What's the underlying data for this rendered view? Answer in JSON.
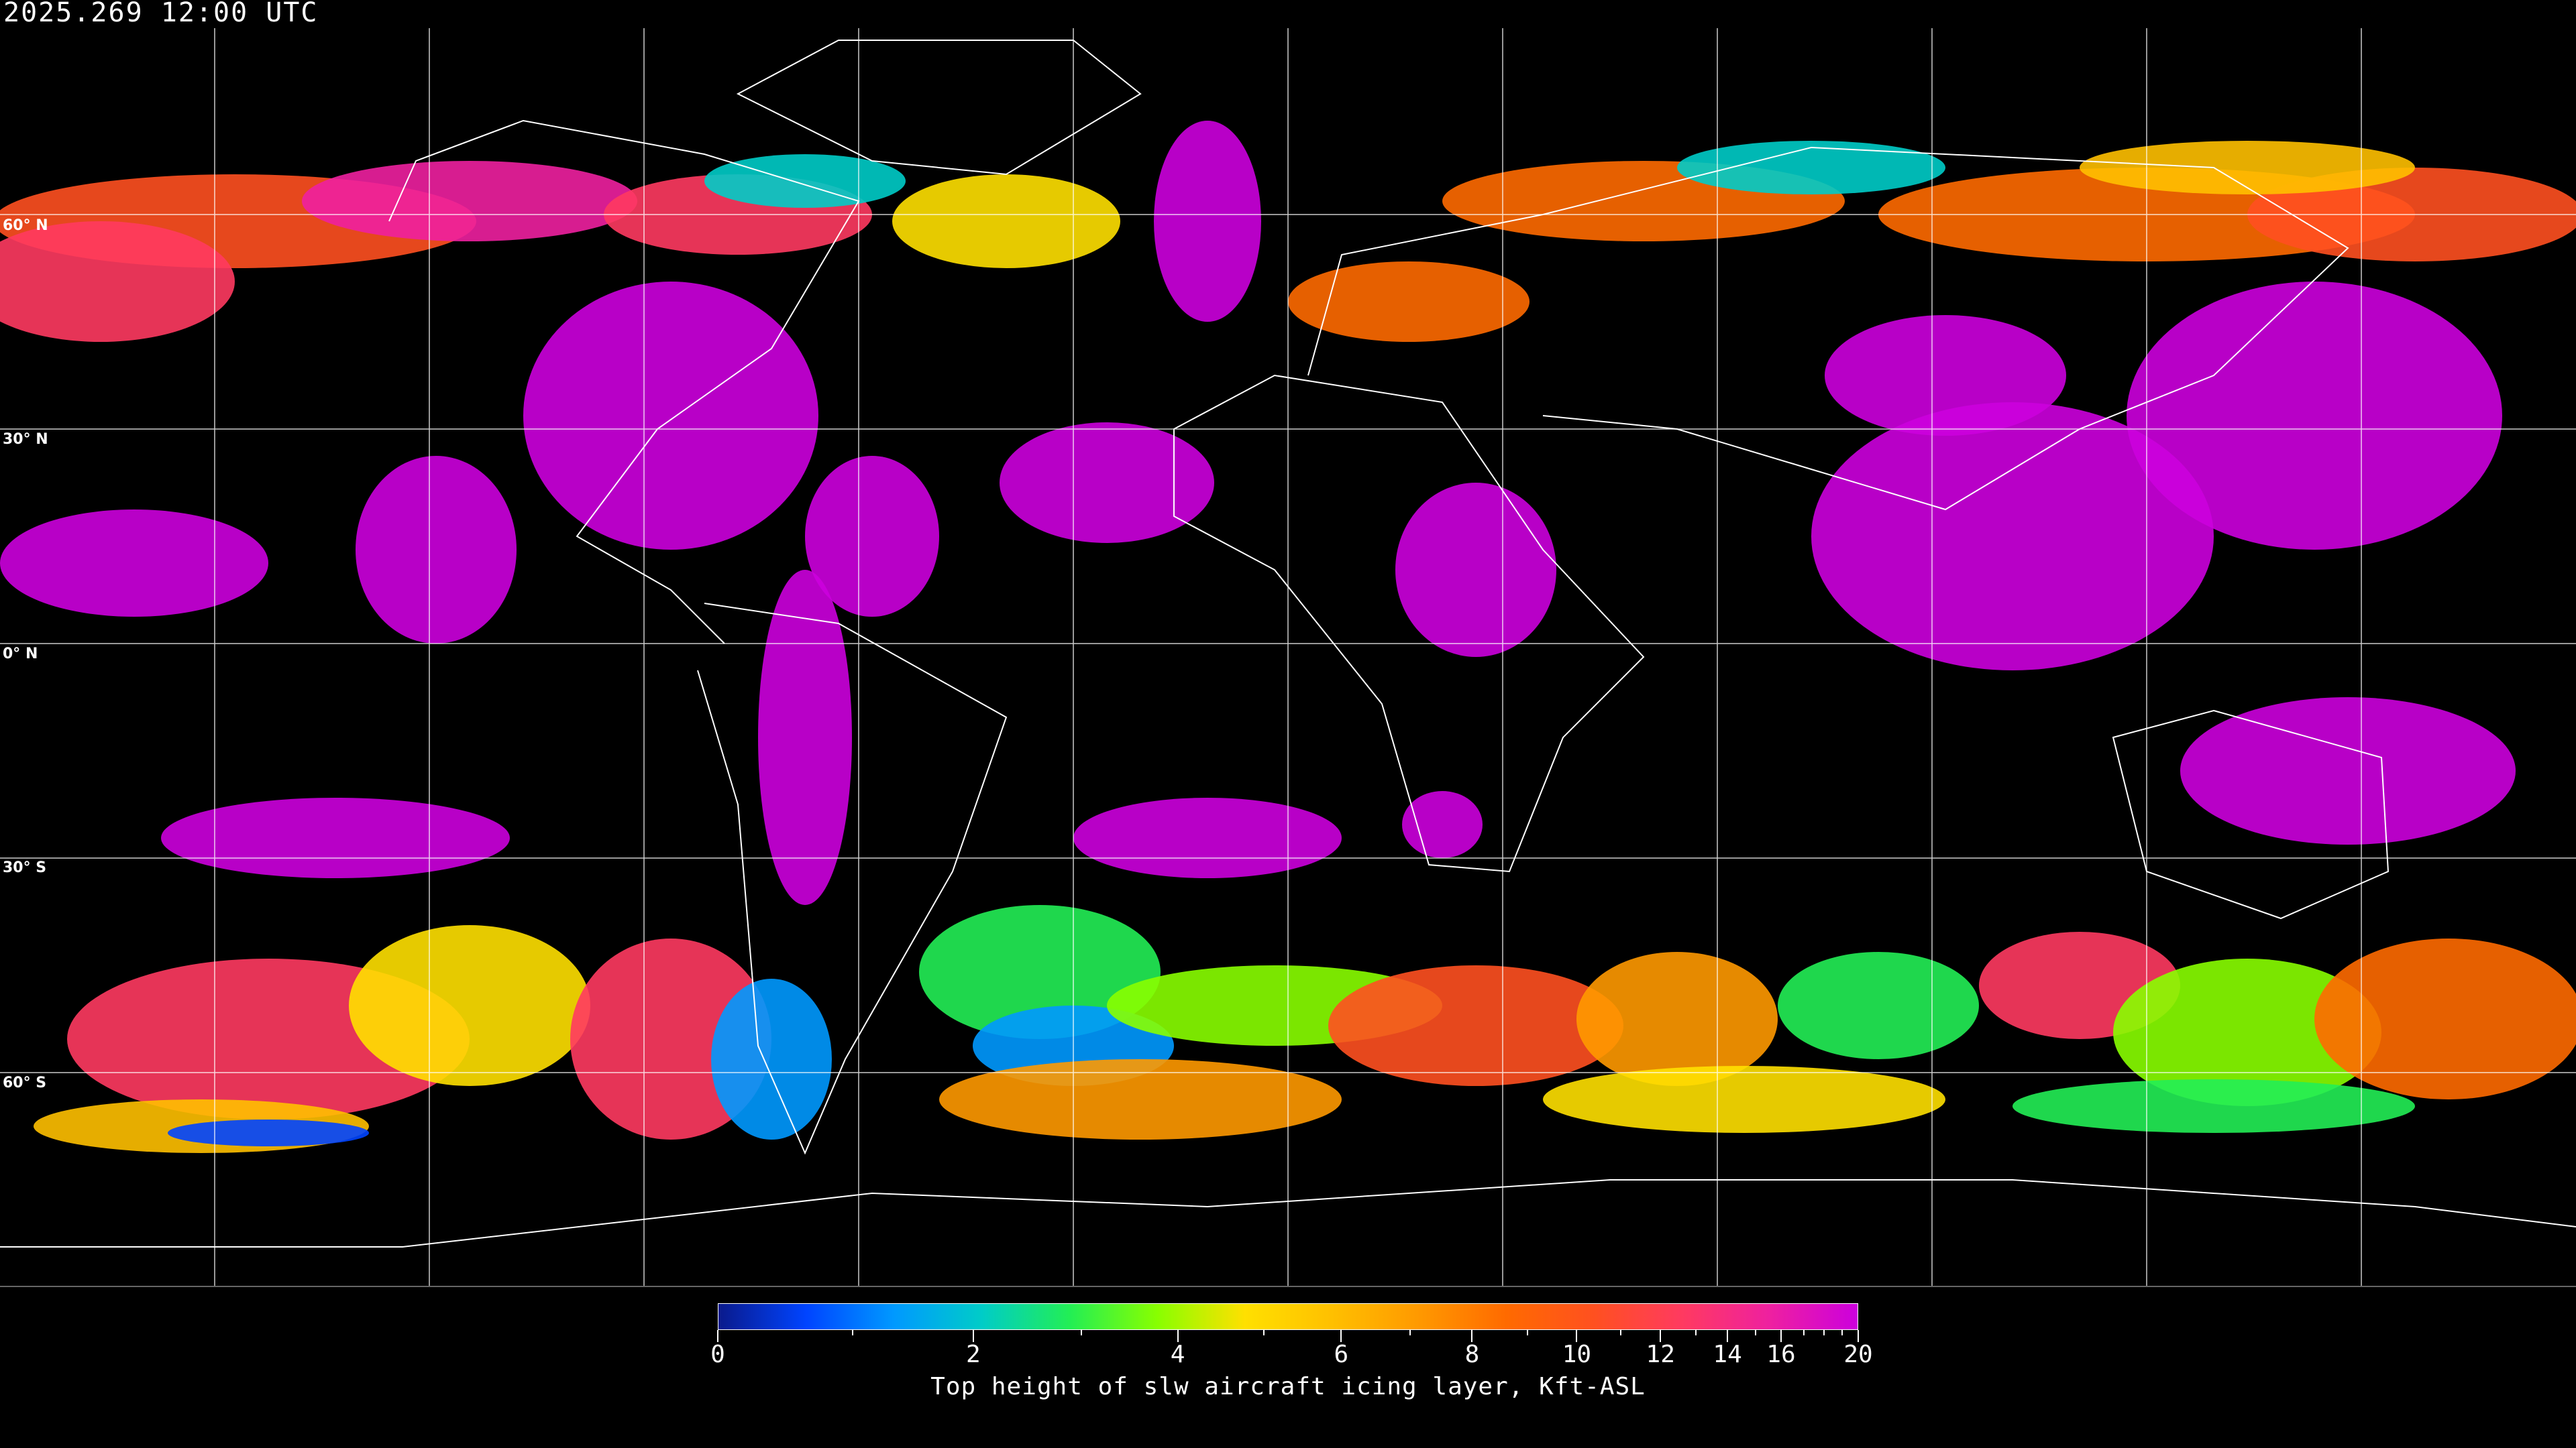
{
  "header": {
    "timestamp": "2025.269 12:00 UTC"
  },
  "map": {
    "projection": "equirectangular",
    "latitude_labels": [
      "60° N",
      "30° N",
      "0° N",
      "30° S",
      "60° S"
    ],
    "grid_spacing_degrees": 30,
    "colors": {
      "background": "#000000",
      "grid": "#ffffff",
      "coastline": "#ffffff"
    }
  },
  "colorbar": {
    "title": "Top height of slw aircraft icing layer, Kft-ASL",
    "min": 0,
    "max": 20,
    "tick_labels": [
      "0",
      "2",
      "4",
      "6",
      "8",
      "10",
      "12",
      "14",
      "16",
      "20"
    ],
    "tick_values": [
      0,
      2,
      4,
      6,
      8,
      10,
      12,
      14,
      16,
      20
    ],
    "minor_ticks": [
      1,
      3,
      5,
      7,
      9,
      11,
      13,
      15,
      17,
      18,
      19
    ],
    "color_stops": [
      "#0a1a8c",
      "#0044ff",
      "#0099ff",
      "#00ccc8",
      "#22ee55",
      "#88ff00",
      "#ffe000",
      "#ffc000",
      "#ff9900",
      "#ff6a00",
      "#ff5020",
      "#ff3a60",
      "#ee20a0",
      "#cc00dd"
    ]
  }
}
